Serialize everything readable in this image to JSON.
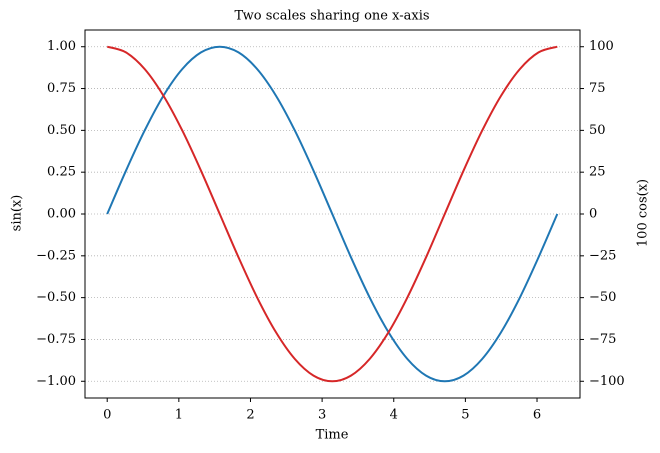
{
  "chart_data": {
    "type": "line",
    "title": "Two scales sharing one x-axis",
    "xlabel": "Time",
    "ylabel": "sin(x)",
    "y2label": "100 cos(x)",
    "x": [
      0,
      0.262,
      0.524,
      0.785,
      1.047,
      1.309,
      1.571,
      1.833,
      2.094,
      2.356,
      2.618,
      2.88,
      3.142,
      3.403,
      3.665,
      3.927,
      4.189,
      4.451,
      4.712,
      4.974,
      5.236,
      5.498,
      5.76,
      6.021,
      6.283
    ],
    "series": [
      {
        "name": "sin(x)",
        "color": "#1f77b4",
        "axis": "y",
        "values": [
          0,
          0.259,
          0.5,
          0.707,
          0.866,
          0.966,
          1,
          0.966,
          0.866,
          0.707,
          0.5,
          0.259,
          0,
          -0.259,
          -0.5,
          -0.707,
          -0.866,
          -0.966,
          -1,
          -0.966,
          -0.866,
          -0.707,
          -0.5,
          -0.259,
          0
        ]
      },
      {
        "name": "100 cos(x)",
        "color": "#d62728",
        "axis": "y2",
        "values": [
          100,
          96.6,
          86.6,
          70.7,
          50,
          25.9,
          0,
          -25.9,
          -50,
          -70.7,
          -86.6,
          -96.6,
          -100,
          -96.6,
          -86.6,
          -70.7,
          -50,
          -25.9,
          0,
          25.9,
          50,
          70.7,
          86.6,
          96.6,
          100
        ]
      }
    ],
    "xlim": [
      -0.31,
      6.6
    ],
    "xticks": [
      0,
      1,
      2,
      3,
      4,
      5,
      6
    ],
    "ylim": [
      -1.1,
      1.1
    ],
    "yticks": [
      {
        "value": -1,
        "label": "−1.00"
      },
      {
        "value": -0.75,
        "label": "−0.75"
      },
      {
        "value": -0.5,
        "label": "−0.50"
      },
      {
        "value": -0.25,
        "label": "−0.25"
      },
      {
        "value": 0,
        "label": "0.00"
      },
      {
        "value": 0.25,
        "label": "0.25"
      },
      {
        "value": 0.5,
        "label": "0.50"
      },
      {
        "value": 0.75,
        "label": "0.75"
      },
      {
        "value": 1,
        "label": "1.00"
      }
    ],
    "y2lim": [
      -110,
      110
    ],
    "y2ticks": [
      {
        "value": -100,
        "label": "−100"
      },
      {
        "value": -75,
        "label": "−75"
      },
      {
        "value": -50,
        "label": "−50"
      },
      {
        "value": -25,
        "label": "−25"
      },
      0,
      25,
      50,
      75,
      100
    ],
    "grid": true
  }
}
